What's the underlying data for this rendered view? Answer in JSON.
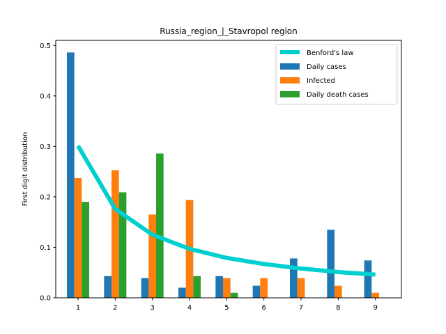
{
  "chart_data": {
    "type": "bar",
    "title": "Russia_region_|_Stavropol region",
    "xlabel": "",
    "ylabel": "First digit distribution",
    "categories": [
      "1",
      "2",
      "3",
      "4",
      "5",
      "6",
      "7",
      "8",
      "9"
    ],
    "x": [
      1,
      2,
      3,
      4,
      5,
      6,
      7,
      8,
      9
    ],
    "xlim": [
      0.4,
      9.7
    ],
    "ylim": [
      0,
      0.51
    ],
    "yticks": [
      0.0,
      0.1,
      0.2,
      0.3,
      0.4,
      0.5
    ],
    "ytick_labels": [
      "0.0",
      "0.1",
      "0.2",
      "0.3",
      "0.4",
      "0.5"
    ],
    "grid": false,
    "legend_position": "top-right",
    "series": [
      {
        "name": "Daily cases",
        "type": "bar",
        "color": "#1f77b4",
        "values": [
          0.486,
          0.043,
          0.039,
          0.02,
          0.043,
          0.024,
          0.078,
          0.135,
          0.074
        ]
      },
      {
        "name": "Infected",
        "type": "bar",
        "color": "#ff7f0e",
        "values": [
          0.237,
          0.253,
          0.165,
          0.194,
          0.039,
          0.039,
          0.039,
          0.024,
          0.01
        ]
      },
      {
        "name": "Daily death cases",
        "type": "bar",
        "color": "#2ca02c",
        "values": [
          0.19,
          0.209,
          0.286,
          0.043,
          0.01,
          0.0,
          0.0,
          0.0,
          0.0
        ]
      },
      {
        "name": "Benford's law",
        "type": "line",
        "color": "#00cfcf",
        "values": [
          0.301,
          0.176,
          0.125,
          0.097,
          0.079,
          0.067,
          0.058,
          0.051,
          0.046
        ]
      }
    ]
  }
}
